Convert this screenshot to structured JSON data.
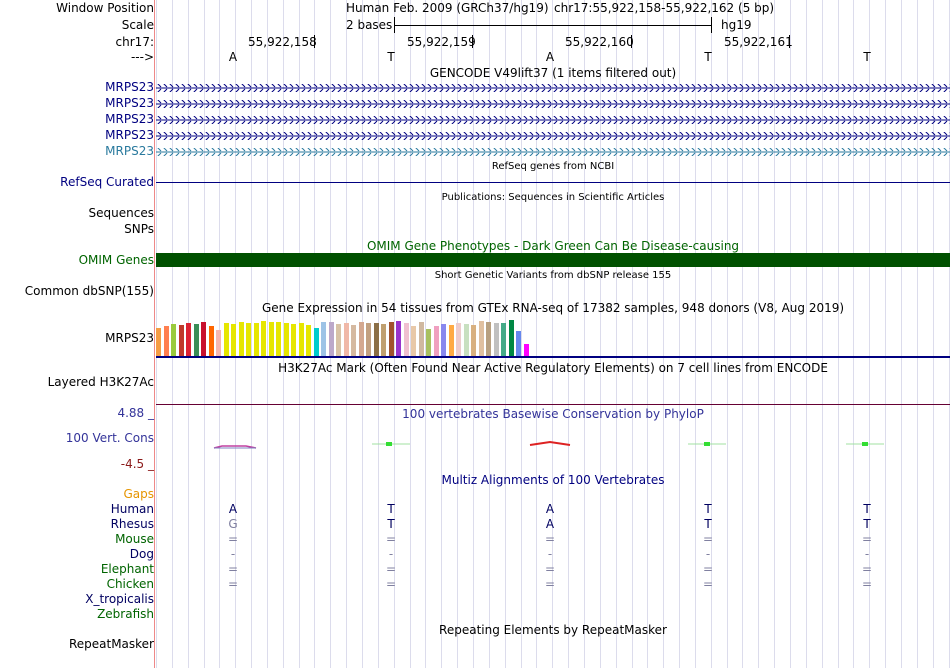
{
  "header": {
    "window_position_label": "Window Position",
    "window_position_value": "Human Feb. 2009 (GRCh37/hg19)",
    "position": "chr17:55,922,158-55,922,162 (5 bp)",
    "scale_label": "Scale",
    "scale_value": "2 bases",
    "assembly": "hg19",
    "chrom_label": "chr17:",
    "coords": [
      "55,922,158",
      "55,922,159",
      "55,922,160",
      "55,922,161"
    ],
    "strand_label": "--->",
    "bases": [
      "A",
      "T",
      "A",
      "T",
      "T"
    ]
  },
  "colors": {
    "navy": "#000080",
    "omim_green": "#006400",
    "gtex": [
      "#f59c43",
      "#ff7f50",
      "#9aca3c",
      "#c0392b",
      "#dd2233",
      "#3b8d57",
      "#c8102e",
      "#ff6600",
      "#f5b7b1",
      "#e6e600",
      "#e6e600",
      "#e6e600",
      "#e6e600",
      "#e6e600",
      "#e6e600",
      "#e6e600",
      "#e6e600",
      "#e6e600",
      "#e6e600",
      "#e6e600",
      "#e6e600",
      "#00cccc",
      "#9dc3e6",
      "#bca8ca",
      "#d8c2a6",
      "#f0b8a8",
      "#d5b9a0",
      "#d4a890",
      "#c2a080",
      "#8b6f47",
      "#c0a070",
      "#a0522d",
      "#9933cc",
      "#f0c0d0",
      "#e8c8a8",
      "#d0b8a0",
      "#a8c060",
      "#f0a0c0",
      "#8888ee",
      "#ffaa44",
      "#eecccc",
      "#c8e0c0",
      "#d8b080",
      "#e0c0a0",
      "#b8a080",
      "#c0c0c0",
      "#44aa88",
      "#008844",
      "#6688ee",
      "#ff00ff"
    ]
  },
  "tracks": {
    "gencode": {
      "title": "GENCODE V49lift37 (1 items filtered out)",
      "items": [
        "MRPS23",
        "MRPS23",
        "MRPS23",
        "MRPS23",
        "MRPS23"
      ]
    },
    "refseq": {
      "title": "RefSeq genes from NCBI",
      "label": "RefSeq Curated"
    },
    "publications": {
      "title": "Publications: Sequences in Scientific Articles",
      "label1": "Sequences",
      "label2": "SNPs"
    },
    "omim": {
      "title": "OMIM Gene Phenotypes - Dark Green Can Be Disease-causing",
      "label": "OMIM Genes"
    },
    "dbsnp": {
      "title": "Short Genetic Variants from dbSNP release 155",
      "label": "Common dbSNP(155)"
    },
    "gtex": {
      "title": "Gene Expression in 54 tissues from GTEx RNA-seq of 17382 samples, 948 donors (V8, Aug 2019)",
      "label": "MRPS23"
    },
    "h3k27ac": {
      "title": "H3K27Ac Mark (Often Found Near Active Regulatory Elements) on 7 cell lines from ENCODE",
      "label": "Layered H3K27Ac"
    },
    "phylop": {
      "title": "100 vertebrates Basewise Conservation by PhyloP",
      "label": "100 Vert. Cons",
      "max": "4.88 _",
      "min": "-4.5 _"
    },
    "multiz": {
      "title": "Multiz Alignments of 100 Vertebrates",
      "gaps_label": "Gaps",
      "species": [
        {
          "name": "Human",
          "bases": [
            "A",
            "T",
            "A",
            "T",
            "T"
          ]
        },
        {
          "name": "Rhesus",
          "bases": [
            "G",
            "T",
            "A",
            "T",
            "T"
          ]
        },
        {
          "name": "Mouse",
          "bases": [
            "=",
            "=",
            "=",
            "=",
            "="
          ]
        },
        {
          "name": "Dog",
          "bases": [
            "-",
            "-",
            "-",
            "-",
            "-"
          ]
        },
        {
          "name": "Elephant",
          "bases": [
            "=",
            "=",
            "=",
            "=",
            "="
          ]
        },
        {
          "name": "Chicken",
          "bases": [
            "=",
            "=",
            "=",
            "=",
            "="
          ]
        },
        {
          "name": "X_tropicalis",
          "bases": [
            "",
            "",
            "",
            "",
            ""
          ]
        },
        {
          "name": "Zebrafish",
          "bases": [
            "",
            "",
            "",
            "",
            ""
          ]
        }
      ]
    },
    "repeatmasker": {
      "title": "Repeating Elements by RepeatMasker",
      "label": "RepeatMasker"
    }
  }
}
